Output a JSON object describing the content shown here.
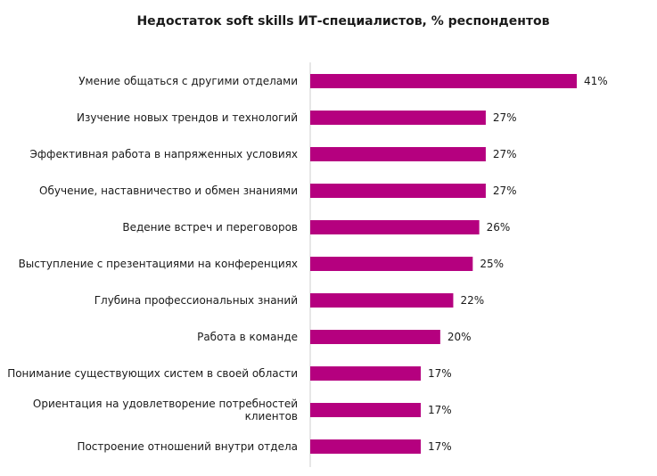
{
  "chart_data": {
    "type": "bar",
    "orientation": "horizontal",
    "title": "Недостаток soft skills ИТ-специалистов, % респондентов",
    "categories": [
      "Умение общаться с другими отделами",
      "Изучение новых трендов и технологий",
      "Эффективная работа в напряженных условиях",
      "Обучение, наставничество и обмен знаниями",
      "Ведение встреч и переговоров",
      "Выступление с презентациями на конференциях",
      "Глубина профессиональных знаний",
      "Работа в команде",
      "Понимание существующих систем в своей области",
      "Ориентация на удовлетворение потребностей клиентов",
      "Построение отношений внутри отдела"
    ],
    "values": [
      41,
      27,
      27,
      27,
      26,
      25,
      22,
      20,
      17,
      17,
      17
    ],
    "value_labels": [
      "41%",
      "27%",
      "27%",
      "27%",
      "26%",
      "25%",
      "22%",
      "20%",
      "17%",
      "17%",
      "17%"
    ],
    "unit": "%",
    "xlim": [
      0,
      41
    ],
    "grid": false,
    "legend": "none",
    "bar_color": "#b5007f"
  }
}
